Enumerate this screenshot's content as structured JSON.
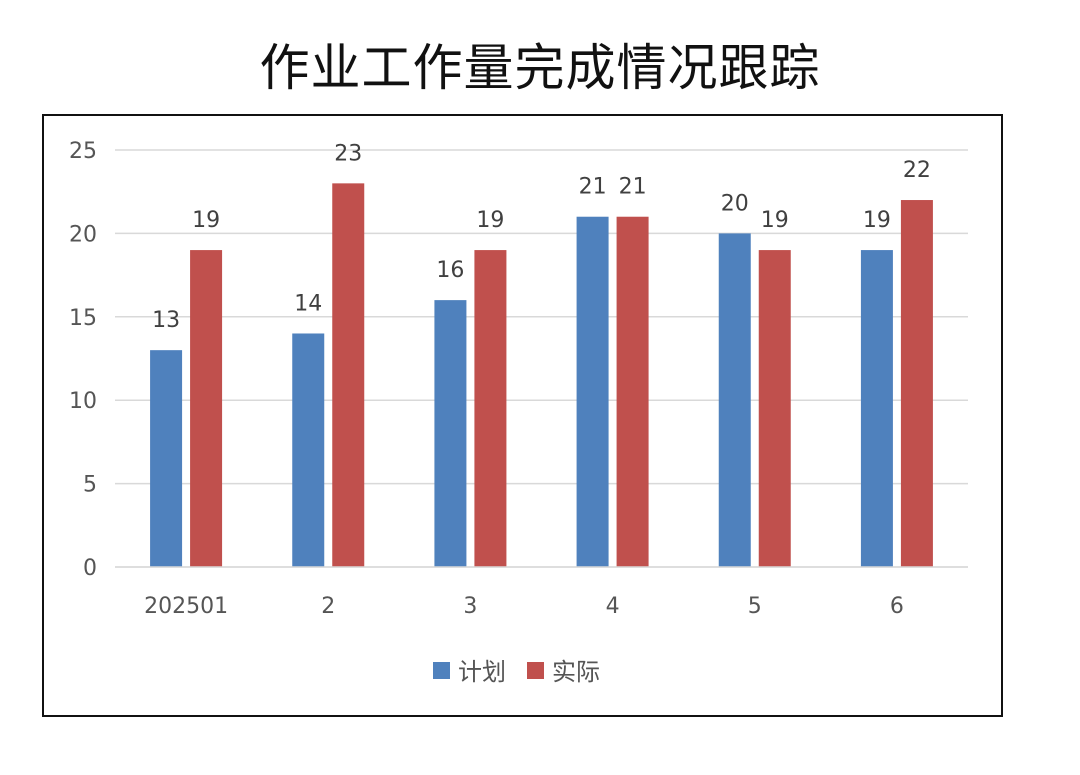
{
  "title": "作业工作量完成情况跟踪",
  "chart_data": {
    "type": "bar",
    "categories": [
      "202501",
      "2",
      "3",
      "4",
      "5",
      "6"
    ],
    "series": [
      {
        "name": "计划",
        "color": "#4F81BD",
        "values": [
          13,
          14,
          16,
          21,
          20,
          19
        ]
      },
      {
        "name": "实际",
        "color": "#C0504D",
        "values": [
          19,
          23,
          19,
          21,
          19,
          22
        ]
      }
    ],
    "ylim": [
      0,
      25
    ],
    "yticks": [
      0,
      5,
      10,
      15,
      20,
      25
    ],
    "grid": true,
    "legend_position": "bottom",
    "data_labels": true
  }
}
